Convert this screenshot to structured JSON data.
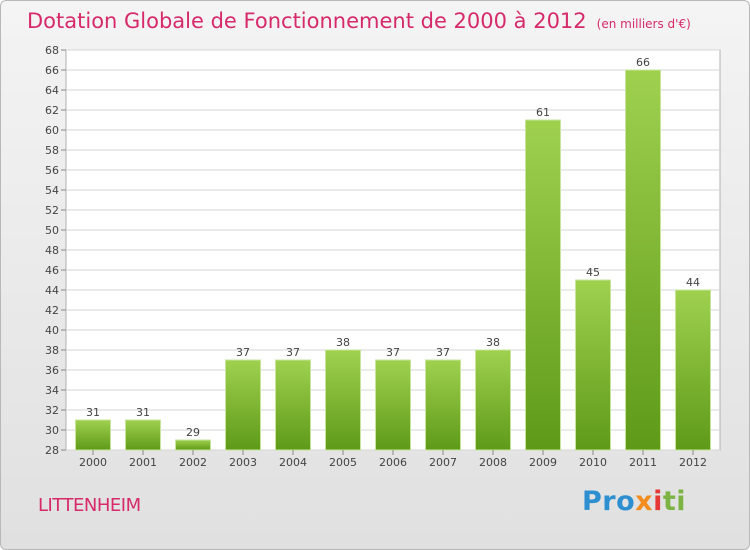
{
  "header": {
    "title": "Dotation Globale de Fonctionnement de 2000 à 2012",
    "subtitle": "(en milliers d'€)"
  },
  "commune": "LITTENHEIM",
  "logo": {
    "text": "Proxiti"
  },
  "colors": {
    "title": "#d62a6b",
    "bar_light": "#9fd14f",
    "bar_dark": "#5e9a18"
  },
  "chart_data": {
    "type": "bar",
    "categories": [
      "2000",
      "2001",
      "2002",
      "2003",
      "2004",
      "2005",
      "2006",
      "2007",
      "2008",
      "2009",
      "2010",
      "2011",
      "2012"
    ],
    "values": [
      31,
      31,
      29,
      37,
      37,
      38,
      37,
      37,
      38,
      61,
      45,
      66,
      44
    ],
    "ylim": [
      28,
      68
    ],
    "ytick_step": 2,
    "grid": true,
    "xlabel": "",
    "ylabel": ""
  }
}
